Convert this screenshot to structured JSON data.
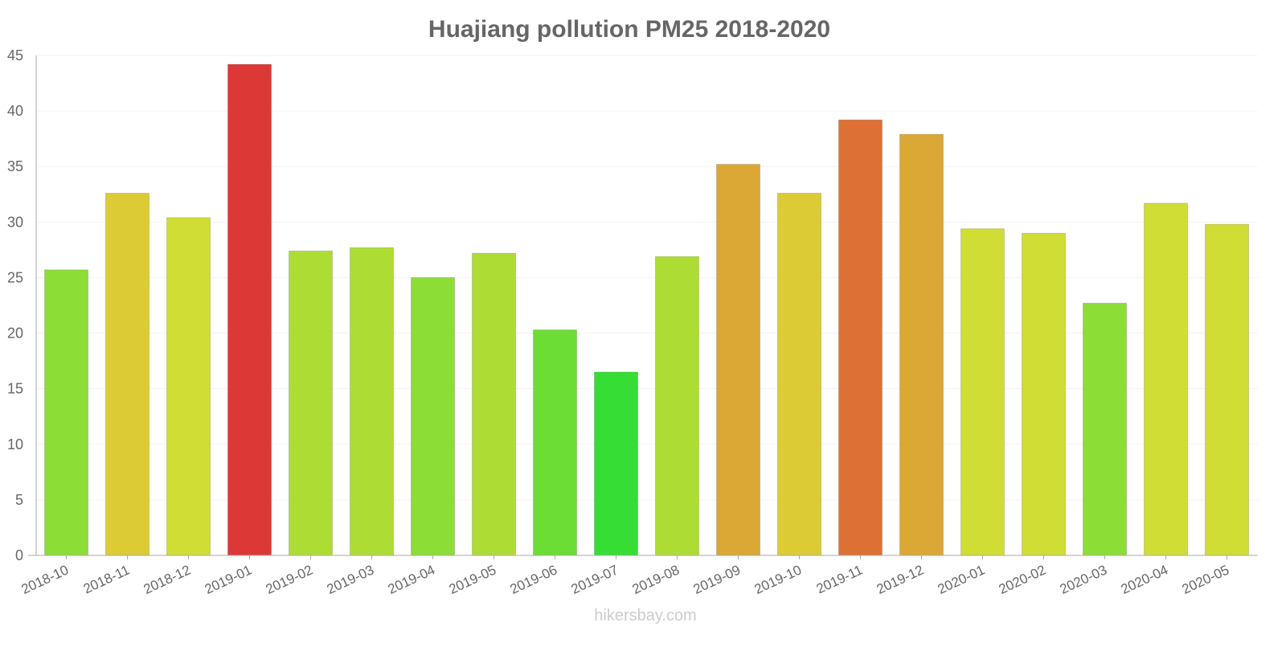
{
  "chart_data": {
    "type": "bar",
    "title": "Huajiang pollution PM25 2018-2020",
    "xlabel": "",
    "ylabel": "",
    "ylim": [
      0,
      45
    ],
    "yticks": [
      "0",
      "5",
      "10",
      "15",
      "20",
      "25",
      "30",
      "35",
      "40",
      "45"
    ],
    "grid": true,
    "categories": [
      "2018-10",
      "2018-11",
      "2018-12",
      "2019-01",
      "2019-02",
      "2019-03",
      "2019-04",
      "2019-05",
      "2019-06",
      "2019-07",
      "2019-08",
      "2019-09",
      "2019-10",
      "2019-11",
      "2019-12",
      "2020-01",
      "2020-02",
      "2020-03",
      "2020-04",
      "2020-05"
    ],
    "values": [
      25.7,
      32.6,
      30.4,
      44.2,
      27.4,
      27.7,
      25.0,
      27.2,
      20.3,
      16.5,
      26.9,
      35.2,
      32.6,
      39.2,
      37.9,
      29.4,
      29.0,
      22.7,
      31.7,
      29.8
    ],
    "colors": [
      "#8cdd35",
      "#dccb35",
      "#d0dd35",
      "#dc3835",
      "#addd35",
      "#addd35",
      "#8cdd35",
      "#addd35",
      "#6cdd35",
      "#35dd35",
      "#addd35",
      "#dca835",
      "#dccb35",
      "#dd7035",
      "#dca835",
      "#d0dd35",
      "#d0dd35",
      "#8cdd35",
      "#d0dd35",
      "#d0dd35"
    ]
  },
  "watermark": "hikersbay.com"
}
